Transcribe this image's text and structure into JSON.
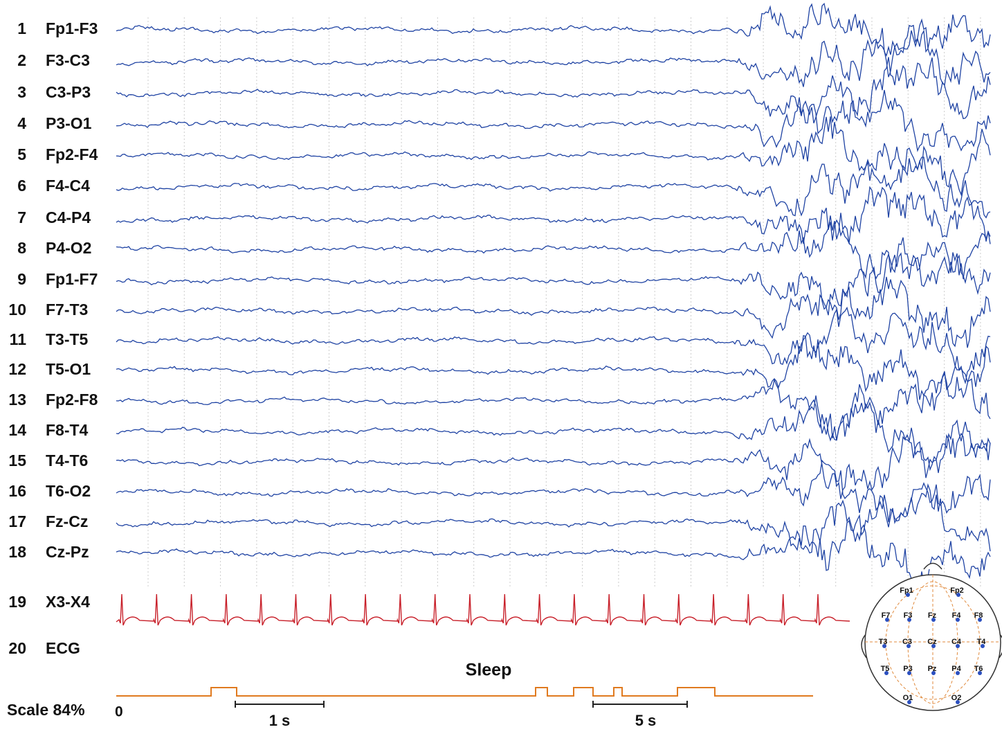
{
  "channels": [
    {
      "number": "1",
      "label": "Fp1-F3"
    },
    {
      "number": "2",
      "label": "F3-C3"
    },
    {
      "number": "3",
      "label": "C3-P3"
    },
    {
      "number": "4",
      "label": "P3-O1"
    },
    {
      "number": "5",
      "label": "Fp2-F4"
    },
    {
      "number": "6",
      "label": "F4-C4"
    },
    {
      "number": "7",
      "label": "C4-P4"
    },
    {
      "number": "8",
      "label": "P4-O2"
    },
    {
      "number": "9",
      "label": "Fp1-F7"
    },
    {
      "number": "10",
      "label": "F7-T3"
    },
    {
      "number": "11",
      "label": "T3-T5"
    },
    {
      "number": "12",
      "label": "T5-O1"
    },
    {
      "number": "13",
      "label": "Fp2-F8"
    },
    {
      "number": "14",
      "label": "F8-T4"
    },
    {
      "number": "15",
      "label": "T4-T6"
    },
    {
      "number": "16",
      "label": "T6-O2"
    },
    {
      "number": "17",
      "label": "Fz-Cz"
    },
    {
      "number": "18",
      "label": "Cz-Pz"
    },
    {
      "number": "19",
      "label": "X3-X4"
    },
    {
      "number": "20",
      "label": "ECG"
    }
  ],
  "sleep_label": "Sleep",
  "scale": "Scale 84%",
  "time_origin": "0",
  "scale_bars": [
    "1 s",
    "5 s"
  ],
  "head_map": {
    "electrodes": [
      "Fp1",
      "Fp2",
      "F7",
      "F3",
      "Fz",
      "F4",
      "F8",
      "T3",
      "C3",
      "Cz",
      "C4",
      "T4",
      "T5",
      "P3",
      "Pz",
      "P4",
      "T6",
      "O1",
      "O2"
    ]
  }
}
